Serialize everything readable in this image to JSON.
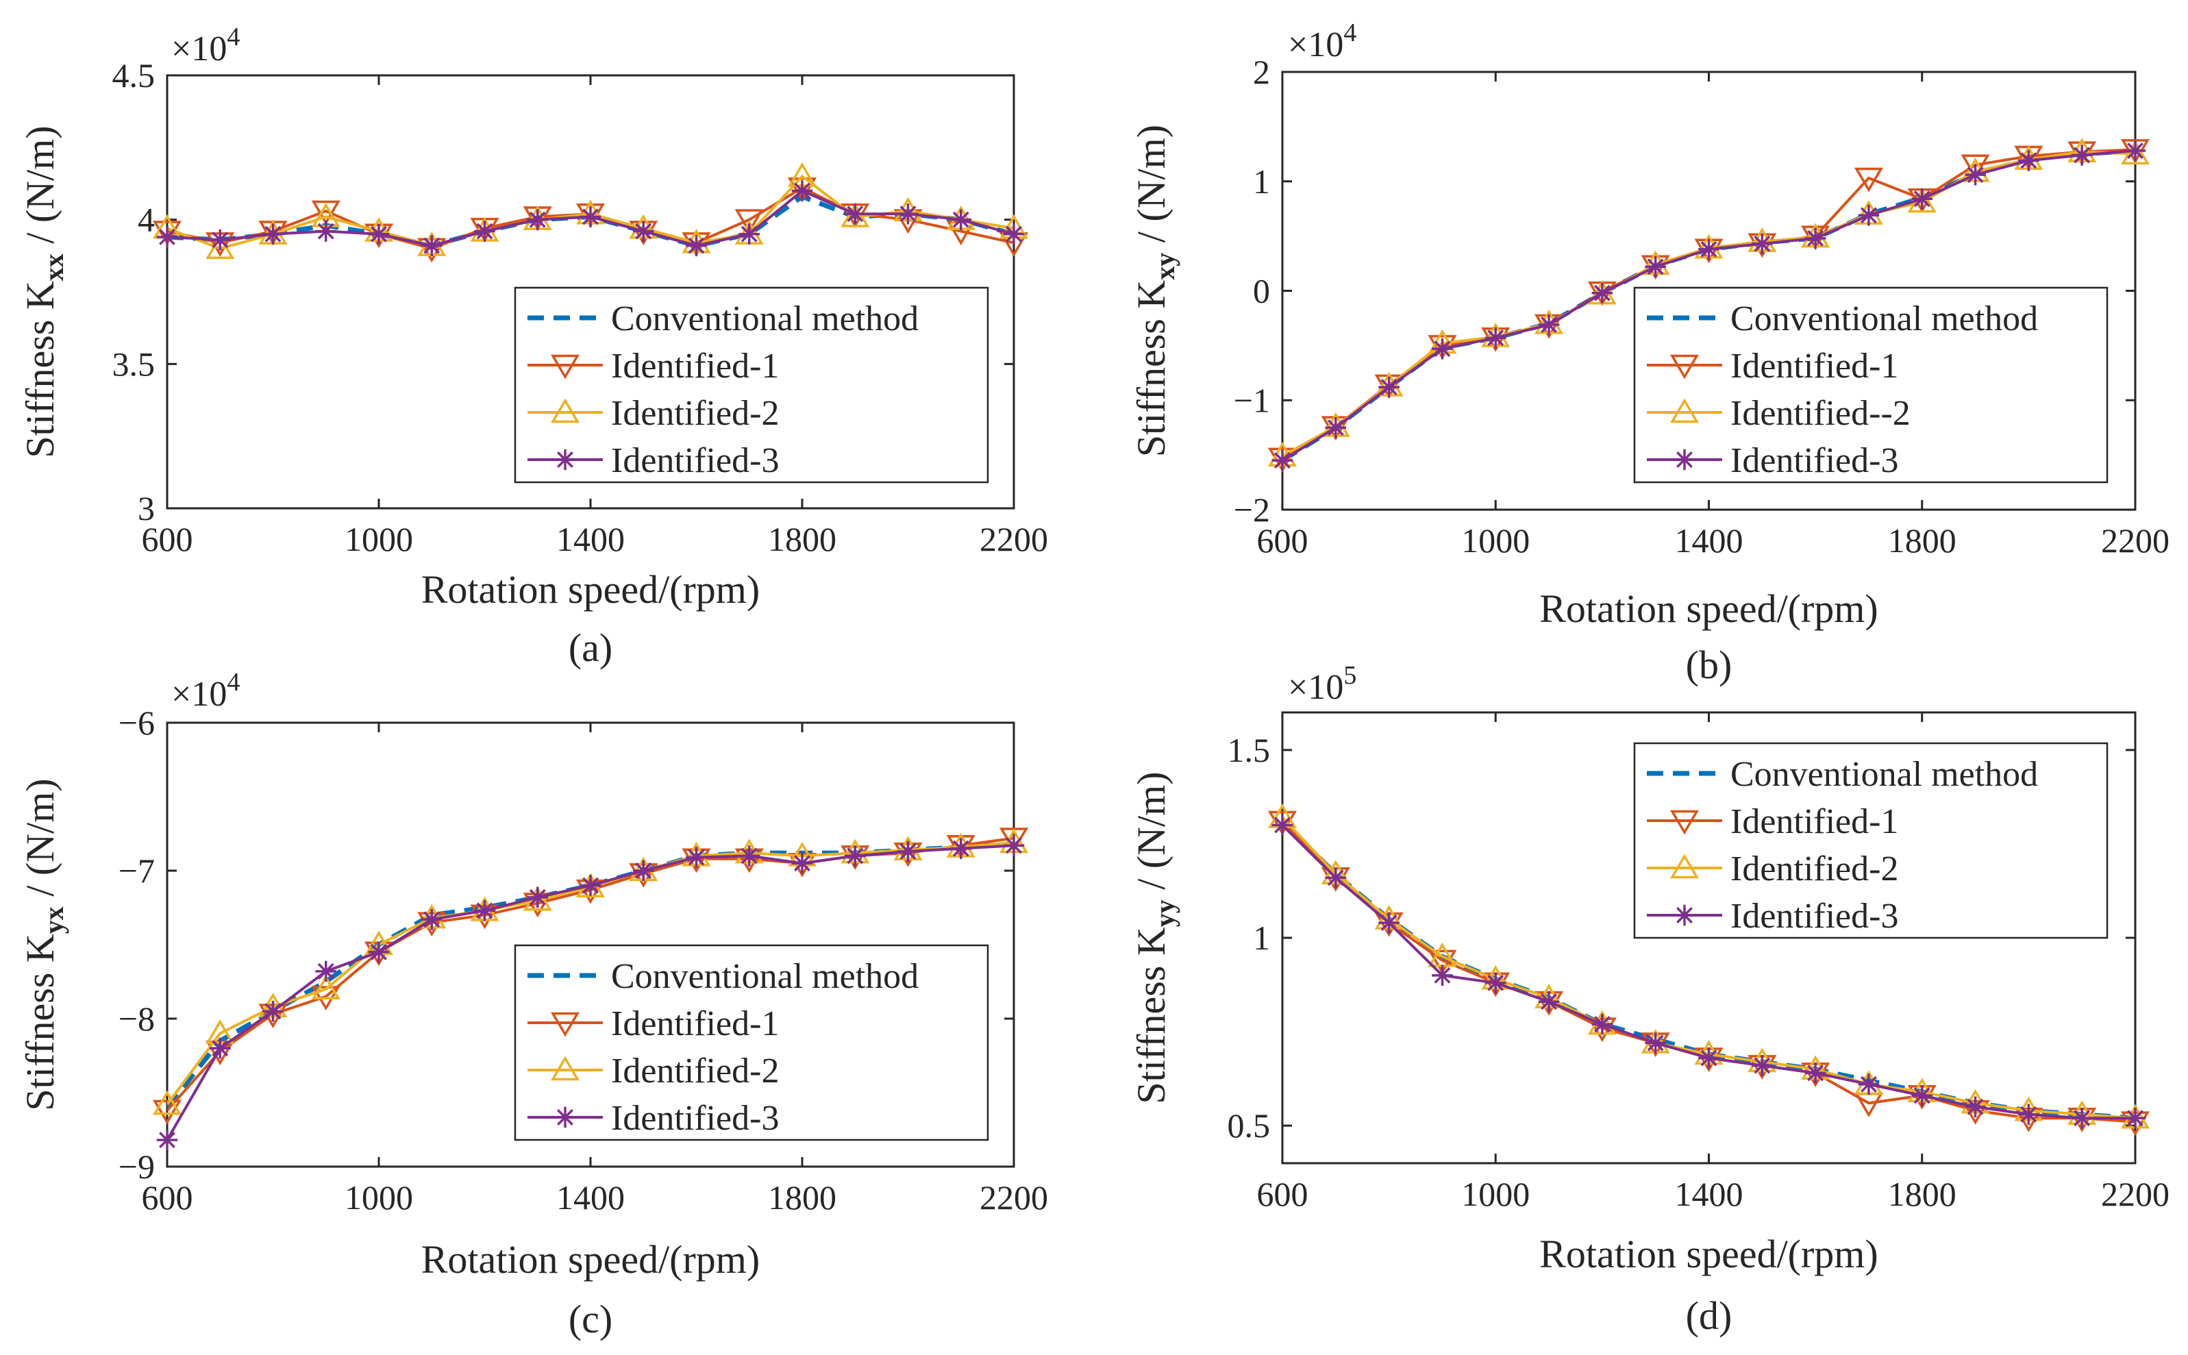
{
  "chart_data": [
    {
      "type": "line",
      "panel": "a",
      "caption": "(a)",
      "ylabel_main": "Stiffness  K",
      "ylabel_sub": "xx",
      "ylabel_unit": " / (N/m)",
      "xlabel": "Rotation speed/(rpm)",
      "exponent_base": "×10",
      "exponent_power": "4",
      "xlim": [
        600,
        2200
      ],
      "ylim": [
        3.0,
        4.5
      ],
      "xticks": [
        600,
        1000,
        1400,
        1800,
        2200
      ],
      "xtick_labels": [
        "600",
        "1000",
        "1400",
        "1800",
        "2200"
      ],
      "yticks": [
        3.0,
        3.5,
        4.0,
        4.5
      ],
      "ytick_labels": [
        "3",
        "3.5",
        "4",
        "4.5"
      ],
      "legend_position": "bottom-right",
      "x": [
        600,
        700,
        800,
        900,
        1000,
        1100,
        1200,
        1300,
        1400,
        1500,
        1600,
        1700,
        1800,
        1900,
        2000,
        2100,
        2200
      ],
      "series": [
        {
          "name": "Conventional method",
          "values": [
            3.94,
            3.93,
            3.95,
            3.98,
            3.95,
            3.91,
            3.96,
            4.0,
            4.01,
            3.96,
            3.91,
            3.95,
            4.08,
            4.01,
            4.02,
            4.0,
            3.95
          ]
        },
        {
          "name": "Identified-1",
          "values": [
            3.96,
            3.92,
            3.96,
            4.03,
            3.95,
            3.9,
            3.97,
            4.01,
            4.02,
            3.96,
            3.92,
            4.0,
            4.11,
            4.02,
            4.0,
            3.96,
            3.92
          ]
        },
        {
          "name": "Identified-2",
          "values": [
            3.97,
            3.9,
            3.95,
            4.01,
            3.96,
            3.91,
            3.96,
            4.0,
            4.02,
            3.97,
            3.92,
            3.95,
            4.15,
            4.01,
            4.03,
            4.0,
            3.97
          ]
        },
        {
          "name": "Identified-3",
          "values": [
            3.94,
            3.93,
            3.95,
            3.96,
            3.95,
            3.91,
            3.96,
            4.0,
            4.01,
            3.96,
            3.91,
            3.95,
            4.1,
            4.02,
            4.02,
            4.0,
            3.95
          ]
        }
      ]
    },
    {
      "type": "line",
      "panel": "b",
      "caption": "(b)",
      "ylabel_main": "Stiffness  K",
      "ylabel_sub": "xy",
      "ylabel_unit": " / (N/m)",
      "xlabel": "Rotation speed/(rpm)",
      "exponent_base": "×10",
      "exponent_power": "4",
      "xlim": [
        600,
        2200
      ],
      "ylim": [
        -2.0,
        2.0
      ],
      "xticks": [
        600,
        1000,
        1400,
        1800,
        2200
      ],
      "xtick_labels": [
        "600",
        "1000",
        "1400",
        "1800",
        "2200"
      ],
      "yticks": [
        -2,
        -1,
        0,
        1,
        2
      ],
      "ytick_labels": [
        "−2",
        "−1",
        "0",
        "1",
        "2"
      ],
      "legend_position": "bottom-right",
      "x": [
        600,
        700,
        800,
        900,
        1000,
        1100,
        1200,
        1300,
        1400,
        1500,
        1600,
        1700,
        1800,
        1900,
        2000,
        2100,
        2200
      ],
      "series": [
        {
          "name": "Conventional method",
          "values": [
            -1.55,
            -1.25,
            -0.88,
            -0.52,
            -0.43,
            -0.3,
            -0.02,
            0.23,
            0.38,
            0.44,
            0.48,
            0.7,
            0.85,
            1.07,
            1.2,
            1.25,
            1.28
          ]
        },
        {
          "name": "Identified-1",
          "values": [
            -1.53,
            -1.24,
            -0.86,
            -0.5,
            -0.43,
            -0.31,
            -0.01,
            0.23,
            0.38,
            0.43,
            0.5,
            1.03,
            0.84,
            1.15,
            1.23,
            1.27,
            1.29
          ]
        },
        {
          "name": "Identified--2",
          "values": [
            -1.51,
            -1.24,
            -0.87,
            -0.48,
            -0.42,
            -0.3,
            -0.03,
            0.24,
            0.39,
            0.45,
            0.49,
            0.7,
            0.81,
            1.09,
            1.2,
            1.27,
            1.25
          ]
        },
        {
          "name": "Identified-3",
          "values": [
            -1.55,
            -1.25,
            -0.88,
            -0.53,
            -0.43,
            -0.31,
            -0.02,
            0.22,
            0.38,
            0.43,
            0.48,
            0.69,
            0.84,
            1.06,
            1.19,
            1.24,
            1.28
          ]
        }
      ]
    },
    {
      "type": "line",
      "panel": "c",
      "caption": "(c)",
      "ylabel_main": "Stiffness  K",
      "ylabel_sub": "yx",
      "ylabel_unit": " / (N/m)",
      "xlabel": "Rotation speed/(rpm)",
      "exponent_base": "×10",
      "exponent_power": "4",
      "xlim": [
        600,
        2200
      ],
      "ylim": [
        -9.0,
        -6.0
      ],
      "xticks": [
        600,
        1000,
        1400,
        1800,
        2200
      ],
      "xtick_labels": [
        "600",
        "1000",
        "1400",
        "1800",
        "2200"
      ],
      "yticks": [
        -9,
        -8,
        -7,
        -6
      ],
      "ytick_labels": [
        "−9",
        "−8",
        "−7",
        "−6"
      ],
      "legend_position": "bottom-right",
      "x": [
        600,
        700,
        800,
        900,
        1000,
        1100,
        1200,
        1300,
        1400,
        1500,
        1600,
        1700,
        1800,
        1900,
        2000,
        2100,
        2200
      ],
      "series": [
        {
          "name": "Conventional method",
          "values": [
            -8.6,
            -8.15,
            -7.95,
            -7.75,
            -7.5,
            -7.3,
            -7.25,
            -7.18,
            -7.1,
            -7.0,
            -6.9,
            -6.88,
            -6.88,
            -6.88,
            -6.86,
            -6.84,
            -6.82
          ]
        },
        {
          "name": "Identified-1",
          "values": [
            -8.62,
            -8.22,
            -7.97,
            -7.85,
            -7.55,
            -7.35,
            -7.3,
            -7.22,
            -7.13,
            -7.02,
            -6.92,
            -6.92,
            -6.95,
            -6.9,
            -6.88,
            -6.83,
            -6.78
          ]
        },
        {
          "name": "Identified-2",
          "values": [
            -8.58,
            -8.1,
            -7.92,
            -7.8,
            -7.5,
            -7.32,
            -7.27,
            -7.2,
            -7.11,
            -7.0,
            -6.9,
            -6.88,
            -6.9,
            -6.88,
            -6.86,
            -6.84,
            -6.81
          ]
        },
        {
          "name": "Identified-3",
          "values": [
            -8.82,
            -8.2,
            -7.95,
            -7.68,
            -7.55,
            -7.33,
            -7.27,
            -7.18,
            -7.1,
            -7.0,
            -6.91,
            -6.9,
            -6.95,
            -6.9,
            -6.87,
            -6.85,
            -6.83
          ]
        }
      ]
    },
    {
      "type": "line",
      "panel": "d",
      "caption": "(d)",
      "ylabel_main": "Stiffness  K",
      "ylabel_sub": "yy",
      "ylabel_unit": " / (N/m)",
      "xlabel": "Rotation speed/(rpm)",
      "exponent_base": "×10",
      "exponent_power": "5",
      "xlim": [
        600,
        2200
      ],
      "ylim": [
        0.4,
        1.6
      ],
      "xticks": [
        600,
        1000,
        1400,
        1800,
        2200
      ],
      "xtick_labels": [
        "600",
        "1000",
        "1400",
        "1800",
        "2200"
      ],
      "yticks": [
        0.5,
        1.0,
        1.5
      ],
      "ytick_labels": [
        "0.5",
        "1",
        "1.5"
      ],
      "legend_position": "top-right",
      "x": [
        600,
        700,
        800,
        900,
        1000,
        1100,
        1200,
        1300,
        1400,
        1500,
        1600,
        1700,
        1800,
        1900,
        2000,
        2100,
        2200
      ],
      "series": [
        {
          "name": "Conventional method",
          "values": [
            1.31,
            1.17,
            1.05,
            0.95,
            0.89,
            0.84,
            0.77,
            0.73,
            0.69,
            0.67,
            0.65,
            0.62,
            0.59,
            0.56,
            0.54,
            0.53,
            0.52
          ]
        },
        {
          "name": "Identified-1",
          "values": [
            1.31,
            1.16,
            1.04,
            0.94,
            0.88,
            0.83,
            0.76,
            0.72,
            0.68,
            0.66,
            0.64,
            0.56,
            0.58,
            0.54,
            0.52,
            0.52,
            0.51
          ]
        },
        {
          "name": "Identified-2",
          "values": [
            1.32,
            1.17,
            1.05,
            0.95,
            0.89,
            0.84,
            0.77,
            0.72,
            0.69,
            0.67,
            0.65,
            0.61,
            0.59,
            0.56,
            0.54,
            0.53,
            0.52
          ]
        },
        {
          "name": "Identified-3",
          "values": [
            1.3,
            1.16,
            1.04,
            0.9,
            0.88,
            0.83,
            0.77,
            0.72,
            0.68,
            0.66,
            0.64,
            0.61,
            0.58,
            0.55,
            0.53,
            0.52,
            0.52
          ]
        }
      ]
    }
  ],
  "series_styles": [
    {
      "color": "#0072BD",
      "marker": "none",
      "dash": "dashed"
    },
    {
      "color": "#D95319",
      "marker": "triangle-down",
      "dash": "solid"
    },
    {
      "color": "#EDB120",
      "marker": "triangle-up",
      "dash": "solid"
    },
    {
      "color": "#7E2F8E",
      "marker": "asterisk",
      "dash": "solid"
    }
  ]
}
